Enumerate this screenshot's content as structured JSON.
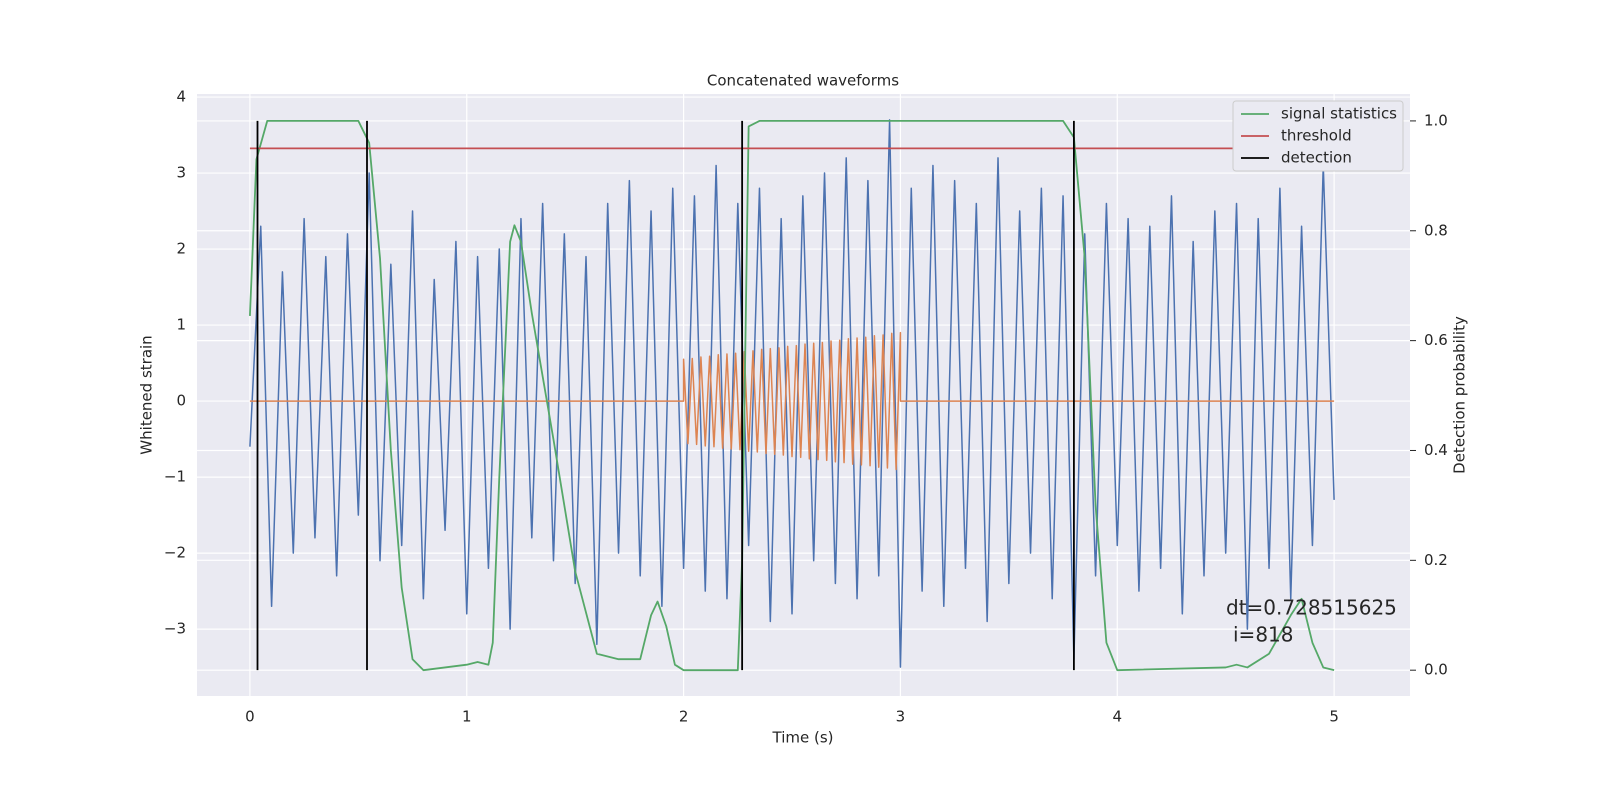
{
  "chart_data": {
    "type": "line",
    "title": "Concatenated waveforms",
    "x_label": "Time (s)",
    "y_label": "Whitened strain",
    "y2_label": "Detection probability",
    "annotations": [
      "dt=0.728515625",
      "i=818"
    ],
    "xlim": [
      -0.244,
      5.35
    ],
    "xticks": [
      0,
      1,
      2,
      3,
      4,
      5
    ],
    "ylim": [
      -3.88,
      4.04
    ],
    "yticks": [
      {
        "value": -3,
        "label": "−3"
      },
      {
        "value": -2,
        "label": "−2"
      },
      {
        "value": -1,
        "label": "−1"
      },
      0,
      1,
      2,
      3,
      4
    ],
    "y2lim": [
      -0.047,
      1.049
    ],
    "y2ticks": [
      {
        "value": 0,
        "label": "0.0"
      },
      {
        "value": 0.2,
        "label": "0.2"
      },
      {
        "value": 0.4,
        "label": "0.4"
      },
      {
        "value": 0.6,
        "label": "0.6"
      },
      {
        "value": 0.8,
        "label": "0.8"
      },
      {
        "value": 1,
        "label": "1.0"
      }
    ],
    "grid": true,
    "legend": "upper right",
    "series": [
      {
        "color": "#4c72b0",
        "x": [
          0,
          0.05,
          0.1,
          0.15,
          0.2,
          0.25,
          0.3,
          0.35,
          0.4,
          0.45,
          0.5,
          0.55,
          0.6,
          0.65,
          0.7,
          0.75,
          0.8,
          0.85,
          0.9,
          0.95,
          1,
          1.05,
          1.1,
          1.15,
          1.2,
          1.25,
          1.3,
          1.35,
          1.4,
          1.45,
          1.5,
          1.55,
          1.6,
          1.65,
          1.7,
          1.75,
          1.8,
          1.85,
          1.9,
          1.95,
          2,
          2.05,
          2.1,
          2.15,
          2.2,
          2.25,
          2.3,
          2.35,
          2.4,
          2.45,
          2.5,
          2.55,
          2.6,
          2.65,
          2.7,
          2.75,
          2.8,
          2.85,
          2.9,
          2.95,
          3,
          3.05,
          3.1,
          3.15,
          3.2,
          3.25,
          3.3,
          3.35,
          3.4,
          3.45,
          3.5,
          3.55,
          3.6,
          3.65,
          3.7,
          3.75,
          3.8,
          3.85,
          3.9,
          3.95,
          4,
          4.05,
          4.1,
          4.15,
          4.2,
          4.25,
          4.3,
          4.35,
          4.4,
          4.45,
          4.5,
          4.55,
          4.6,
          4.65,
          4.7,
          4.75,
          4.8,
          4.85,
          4.9,
          4.95,
          5
        ],
        "values": [
          -0.6,
          2.3,
          -2.7,
          1.7,
          -2.0,
          2.4,
          -1.8,
          1.9,
          -2.3,
          2.2,
          -1.5,
          3.0,
          -2.1,
          1.8,
          -1.9,
          2.5,
          -2.6,
          1.6,
          -1.7,
          2.1,
          -2.8,
          1.9,
          -2.2,
          2.0,
          -3.0,
          2.4,
          -1.8,
          2.6,
          -2.1,
          2.2,
          -2.4,
          1.9,
          -3.2,
          2.6,
          -2.0,
          2.9,
          -2.3,
          2.5,
          -2.7,
          2.8,
          -2.2,
          2.7,
          -2.5,
          3.1,
          -2.6,
          2.6,
          -1.9,
          2.8,
          -2.9,
          2.4,
          -2.8,
          2.7,
          -2.1,
          3.0,
          -2.4,
          3.2,
          -2.6,
          2.9,
          -2.3,
          3.7,
          -3.5,
          2.8,
          -2.5,
          3.1,
          -2.7,
          2.9,
          -2.2,
          2.6,
          -2.9,
          3.2,
          -2.4,
          2.5,
          -2.0,
          2.8,
          -2.6,
          2.7,
          -3.4,
          2.2,
          -2.3,
          2.6,
          -1.9,
          2.4,
          -2.5,
          2.3,
          -2.2,
          2.7,
          -2.8,
          2.1,
          -2.3,
          2.5,
          -2.0,
          2.6,
          -3.0,
          2.4,
          -2.2,
          2.8,
          -2.6,
          2.3,
          -1.9,
          3.1,
          -1.3
        ]
      },
      {
        "color": "#dd8452",
        "x": [
          0,
          2,
          2,
          2.02,
          2.04,
          2.06,
          2.08,
          2.1,
          2.12,
          2.14,
          2.16,
          2.18,
          2.2,
          2.22,
          2.24,
          2.26,
          2.28,
          2.3,
          2.32,
          2.34,
          2.36,
          2.38,
          2.4,
          2.42,
          2.44,
          2.46,
          2.48,
          2.5,
          2.52,
          2.54,
          2.56,
          2.58,
          2.6,
          2.62,
          2.64,
          2.66,
          2.68,
          2.7,
          2.72,
          2.74,
          2.76,
          2.78,
          2.8,
          2.82,
          2.84,
          2.86,
          2.88,
          2.9,
          2.92,
          2.94,
          2.96,
          2.98,
          3,
          3,
          5
        ],
        "values": [
          0,
          0,
          0.55,
          -0.56,
          0.56,
          -0.57,
          0.58,
          -0.59,
          0.59,
          -0.6,
          0.61,
          -0.62,
          0.62,
          -0.63,
          0.63,
          -0.64,
          0.65,
          -0.66,
          0.66,
          -0.67,
          0.68,
          -0.69,
          0.69,
          -0.7,
          0.7,
          -0.71,
          0.72,
          -0.73,
          0.73,
          -0.74,
          0.75,
          -0.76,
          0.76,
          -0.77,
          0.77,
          -0.78,
          0.79,
          -0.8,
          0.8,
          -0.81,
          0.82,
          -0.83,
          0.83,
          -0.84,
          0.84,
          -0.85,
          0.86,
          -0.87,
          0.87,
          -0.88,
          0.89,
          -0.9,
          0.9,
          0,
          0
        ]
      },
      {
        "name": "signal statistics",
        "color": "#55a868",
        "axis": "y2",
        "x": [
          0,
          0.03,
          0.08,
          0.5,
          0.55,
          0.6,
          0.65,
          0.7,
          0.75,
          0.8,
          1.0,
          1.05,
          1.1,
          1.12,
          1.15,
          1.2,
          1.22,
          1.25,
          1.3,
          1.4,
          1.5,
          1.6,
          1.7,
          1.8,
          1.85,
          1.88,
          1.92,
          1.96,
          2.0,
          2.25,
          2.27,
          2.3,
          2.35,
          3.75,
          3.8,
          3.85,
          3.9,
          3.95,
          4.0,
          4.5,
          4.55,
          4.6,
          4.7,
          4.8,
          4.85,
          4.9,
          4.95,
          5.0
        ],
        "values": [
          0.645,
          0.93,
          1.0,
          1.0,
          0.96,
          0.75,
          0.4,
          0.15,
          0.02,
          0.0,
          0.01,
          0.015,
          0.01,
          0.05,
          0.35,
          0.78,
          0.81,
          0.78,
          0.65,
          0.42,
          0.18,
          0.03,
          0.02,
          0.02,
          0.1,
          0.125,
          0.08,
          0.01,
          0.0,
          0.0,
          0.2,
          0.99,
          1.0,
          1.0,
          0.97,
          0.75,
          0.3,
          0.05,
          0.0,
          0.005,
          0.01,
          0.005,
          0.03,
          0.1,
          0.13,
          0.05,
          0.005,
          0.0
        ]
      },
      {
        "name": "threshold",
        "color": "#c44e52",
        "axis": "y2",
        "x": [
          0,
          5
        ],
        "values": [
          0.95,
          0.95
        ]
      },
      {
        "name": "detection",
        "color": "#000000",
        "axis": "y2",
        "x": [
          0.035,
          0.035,
          null,
          0.54,
          0.54,
          null,
          2.27,
          2.27,
          null,
          3.8,
          3.8
        ],
        "values": [
          0,
          1,
          null,
          0,
          1,
          null,
          0,
          1,
          null,
          0,
          1
        ]
      }
    ]
  }
}
